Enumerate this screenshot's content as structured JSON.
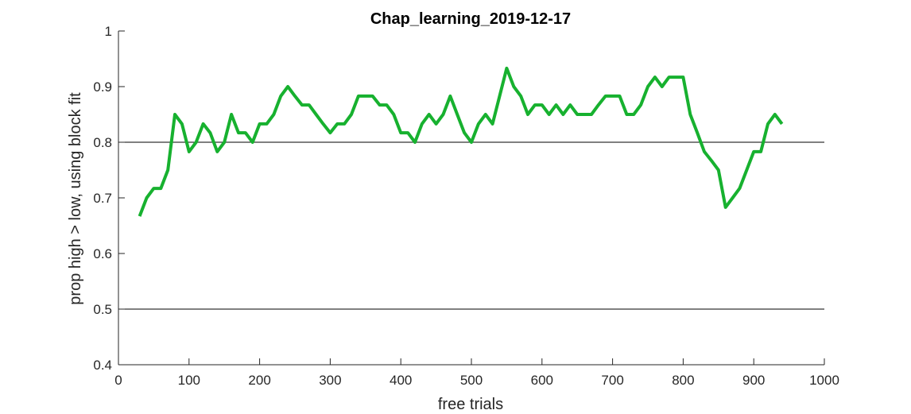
{
  "chart_data": {
    "type": "line",
    "title": "Chap_learning_2019-12-17",
    "xlabel": "free trials",
    "ylabel": "prop high > low, using block fit",
    "xlim": [
      0,
      1000
    ],
    "ylim": [
      0.4,
      1
    ],
    "xticks": [
      0,
      100,
      200,
      300,
      400,
      500,
      600,
      700,
      800,
      900,
      1000
    ],
    "yticks": [
      0.4,
      0.5,
      0.6,
      0.7,
      0.8,
      0.9,
      1
    ],
    "xtick_labels": [
      "0",
      "100",
      "200",
      "300",
      "400",
      "500",
      "600",
      "700",
      "800",
      "900",
      "1000"
    ],
    "ytick_labels": [
      "0.4",
      "0.5",
      "0.6",
      "0.7",
      "0.8",
      "0.9",
      "1"
    ],
    "reference_lines": [
      0.8,
      0.5
    ],
    "grid": false,
    "series": [
      {
        "color": "#17B12F",
        "x": [
          30,
          40,
          50,
          60,
          70,
          80,
          90,
          100,
          110,
          120,
          130,
          140,
          150,
          160,
          170,
          180,
          190,
          200,
          210,
          220,
          230,
          240,
          250,
          260,
          270,
          280,
          290,
          300,
          310,
          320,
          330,
          340,
          350,
          360,
          370,
          380,
          390,
          400,
          410,
          420,
          430,
          440,
          450,
          460,
          470,
          480,
          490,
          500,
          510,
          520,
          530,
          540,
          550,
          560,
          570,
          580,
          590,
          600,
          610,
          620,
          630,
          640,
          650,
          660,
          670,
          680,
          690,
          700,
          710,
          720,
          730,
          740,
          750,
          760,
          770,
          780,
          790,
          800,
          810,
          820,
          830,
          840,
          850,
          860,
          870,
          880,
          890,
          900,
          910,
          920,
          930,
          940
        ],
        "y": [
          0.667,
          0.7,
          0.717,
          0.717,
          0.75,
          0.85,
          0.833,
          0.783,
          0.8,
          0.833,
          0.817,
          0.783,
          0.8,
          0.85,
          0.817,
          0.817,
          0.8,
          0.833,
          0.833,
          0.85,
          0.883,
          0.9,
          0.883,
          0.867,
          0.867,
          0.85,
          0.833,
          0.817,
          0.833,
          0.833,
          0.85,
          0.883,
          0.883,
          0.883,
          0.867,
          0.867,
          0.85,
          0.817,
          0.817,
          0.8,
          0.833,
          0.85,
          0.833,
          0.85,
          0.883,
          0.85,
          0.817,
          0.8,
          0.833,
          0.85,
          0.833,
          0.883,
          0.933,
          0.9,
          0.883,
          0.85,
          0.867,
          0.867,
          0.85,
          0.867,
          0.85,
          0.867,
          0.85,
          0.85,
          0.85,
          0.867,
          0.883,
          0.883,
          0.883,
          0.85,
          0.85,
          0.867,
          0.9,
          0.917,
          0.9,
          0.917,
          0.917,
          0.917,
          0.85,
          0.817,
          0.783,
          0.767,
          0.75,
          0.683,
          0.7,
          0.717,
          0.75,
          0.783,
          0.783,
          0.833,
          0.85,
          0.833
        ]
      }
    ]
  }
}
